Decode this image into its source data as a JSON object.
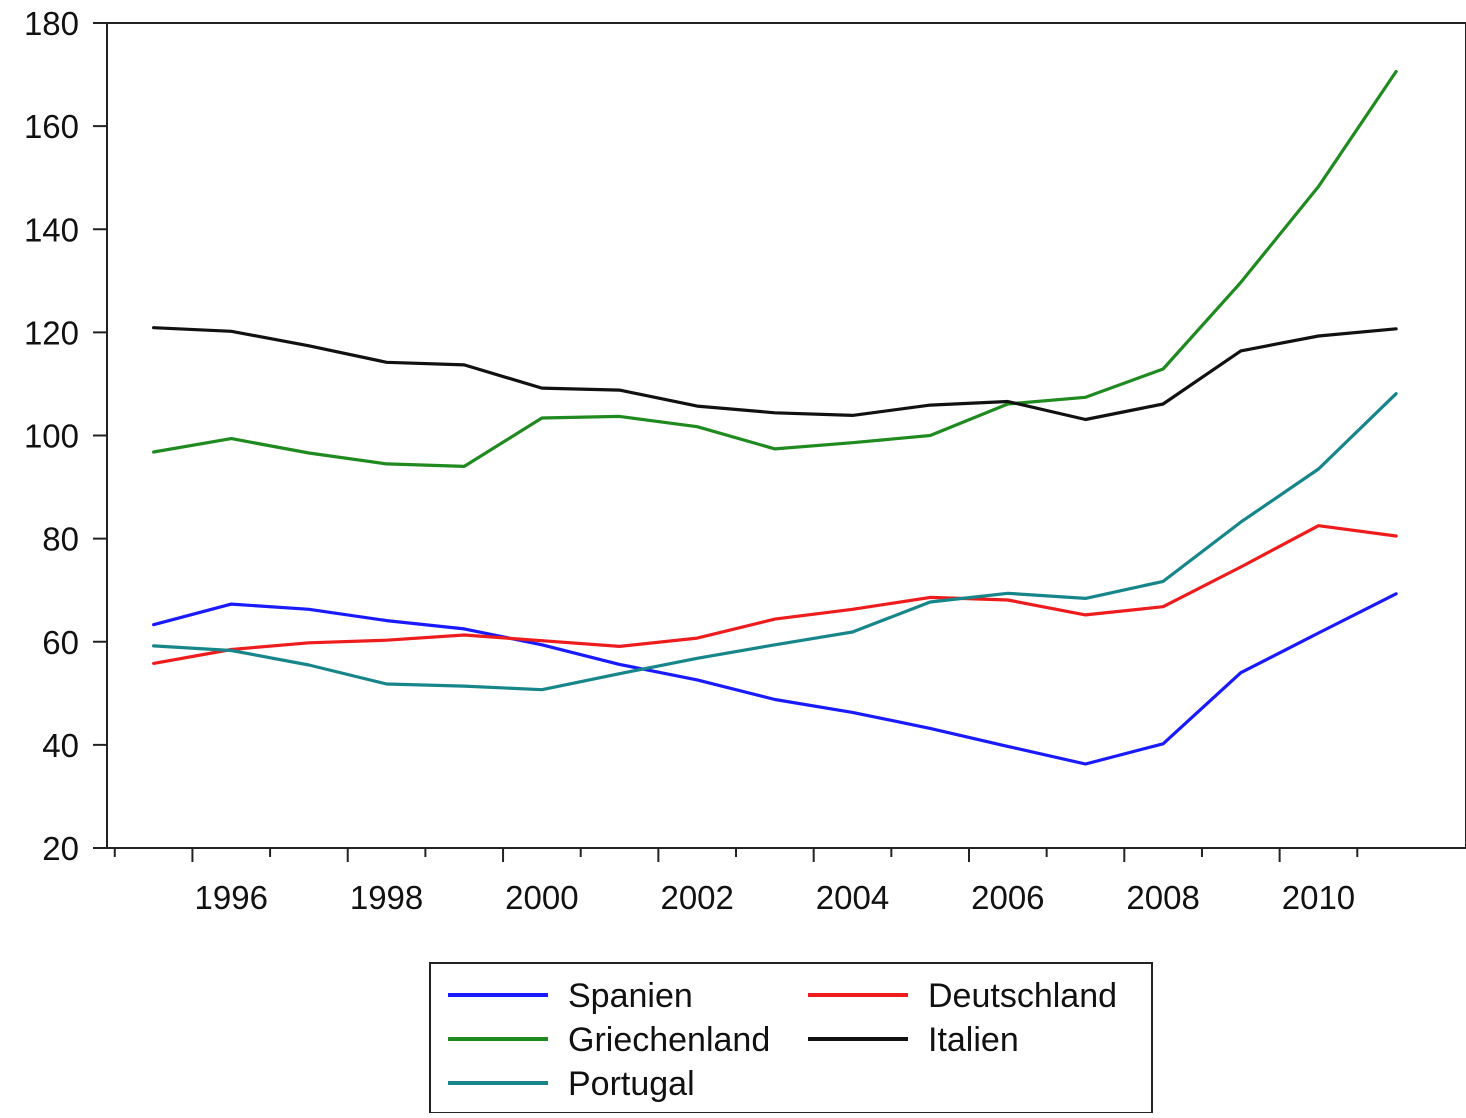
{
  "chart_data": {
    "type": "line",
    "x": [
      1995,
      1996,
      1997,
      1998,
      1999,
      2000,
      2001,
      2002,
      2003,
      2004,
      2005,
      2006,
      2007,
      2008,
      2009,
      2010,
      2011
    ],
    "x_tick_labels": [
      "1996",
      "1998",
      "2000",
      "2002",
      "2004",
      "2006",
      "2008",
      "2010"
    ],
    "x_tick_values": [
      1996,
      1998,
      2000,
      2002,
      2004,
      2006,
      2008,
      2010
    ],
    "xlim": [
      1994.4,
      2011.9
    ],
    "ylim": [
      20,
      180
    ],
    "y_ticks": [
      20,
      40,
      60,
      80,
      100,
      120,
      140,
      160,
      180
    ],
    "grid": false,
    "legend_position": "bottom",
    "series": [
      {
        "name": "Spanien",
        "color": "#1a1aff",
        "values": [
          63.3,
          67.3,
          66.3,
          64.1,
          62.5,
          59.4,
          55.6,
          52.6,
          48.8,
          46.3,
          43.2,
          39.7,
          36.3,
          40.2,
          54.0,
          61.7,
          69.3
        ]
      },
      {
        "name": "Deutschland",
        "color": "#ee1c1c",
        "values": [
          55.8,
          58.5,
          59.8,
          60.3,
          61.3,
          60.2,
          59.1,
          60.7,
          64.4,
          66.3,
          68.6,
          68.1,
          65.2,
          66.8,
          74.5,
          82.5,
          80.5
        ]
      },
      {
        "name": "Griechenland",
        "color": "#1f8a1f",
        "values": [
          96.8,
          99.4,
          96.6,
          94.5,
          94.0,
          103.4,
          103.7,
          101.7,
          97.4,
          98.6,
          100.0,
          106.1,
          107.4,
          112.9,
          129.7,
          148.3,
          170.6
        ]
      },
      {
        "name": "Italien",
        "color": "#111111",
        "values": [
          120.9,
          120.2,
          117.4,
          114.2,
          113.7,
          109.2,
          108.8,
          105.7,
          104.4,
          103.9,
          105.9,
          106.6,
          103.1,
          106.1,
          116.4,
          119.3,
          120.7
        ]
      },
      {
        "name": "Portugal",
        "color": "#17868a",
        "values": [
          59.2,
          58.3,
          55.5,
          51.8,
          51.4,
          50.7,
          53.8,
          56.8,
          59.4,
          61.9,
          67.7,
          69.4,
          68.4,
          71.7,
          83.2,
          93.5,
          108.1
        ]
      }
    ]
  }
}
